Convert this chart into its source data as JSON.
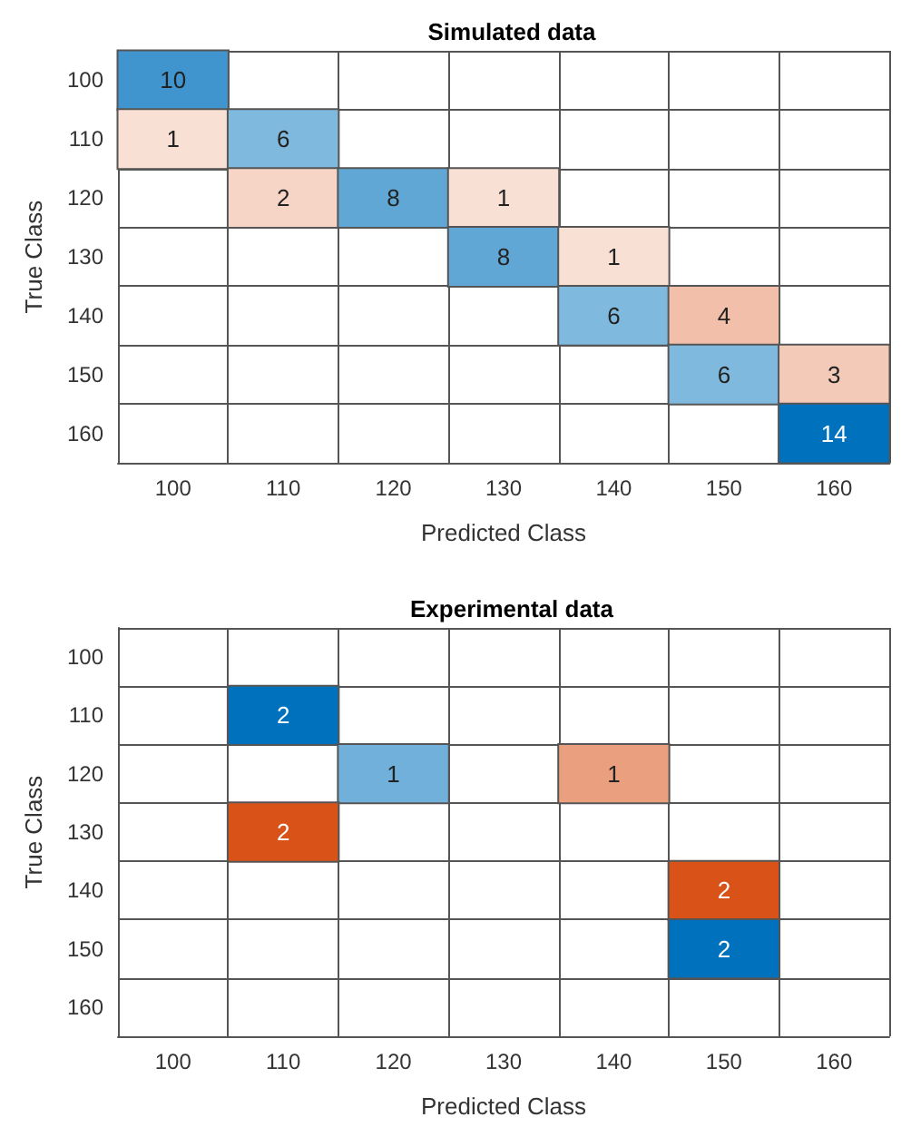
{
  "chart_data": [
    {
      "type": "heatmap",
      "title": "Simulated data",
      "xlabel": "Predicted Class",
      "ylabel": "True Class",
      "categories": [
        "100",
        "110",
        "120",
        "130",
        "140",
        "150",
        "160"
      ],
      "y_categories": [
        "100",
        "110",
        "120",
        "130",
        "140",
        "150",
        "160"
      ],
      "colors": [
        "#0072bd",
        "#d95319"
      ],
      "data_labels": true,
      "grid": true,
      "cells": [
        [
          10,
          null,
          null,
          null,
          null,
          null,
          null
        ],
        [
          1,
          6,
          null,
          null,
          null,
          null,
          null
        ],
        [
          null,
          2,
          8,
          1,
          null,
          null,
          null
        ],
        [
          null,
          null,
          null,
          8,
          1,
          null,
          null
        ],
        [
          null,
          null,
          null,
          null,
          6,
          4,
          null
        ],
        [
          null,
          null,
          null,
          null,
          null,
          6,
          3
        ],
        [
          null,
          null,
          null,
          null,
          null,
          null,
          14
        ]
      ]
    },
    {
      "type": "heatmap",
      "title": "Experimental data",
      "xlabel": "Predicted Class",
      "ylabel": "True Class",
      "categories": [
        "100",
        "110",
        "120",
        "130",
        "140",
        "150",
        "160"
      ],
      "y_categories": [
        "100",
        "110",
        "120",
        "130",
        "140",
        "150",
        "160"
      ],
      "colors": [
        "#0072bd",
        "#d95319"
      ],
      "data_labels": true,
      "grid": true,
      "cells": [
        [
          null,
          null,
          null,
          null,
          null,
          null,
          null
        ],
        [
          null,
          2,
          null,
          null,
          null,
          null,
          null
        ],
        [
          null,
          null,
          1,
          null,
          1,
          null,
          null
        ],
        [
          null,
          2,
          null,
          null,
          null,
          null,
          null
        ],
        [
          null,
          null,
          null,
          null,
          null,
          2,
          null
        ],
        [
          null,
          null,
          null,
          null,
          null,
          2,
          null
        ],
        [
          null,
          null,
          null,
          null,
          null,
          null,
          null
        ]
      ]
    }
  ]
}
